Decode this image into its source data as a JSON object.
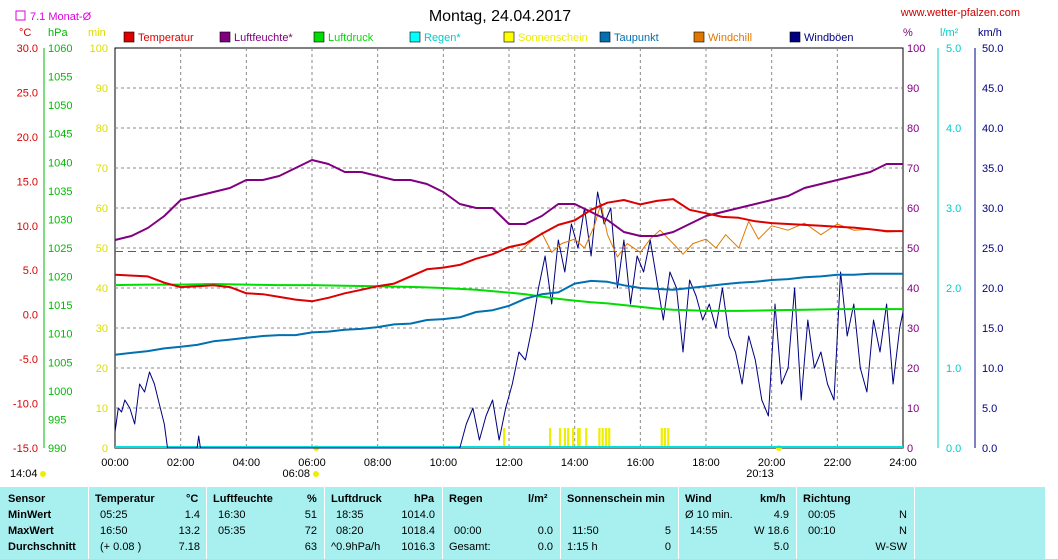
{
  "header": {
    "title": "Montag, 24.04.2017",
    "website": "www.wetter-pfalzen.com",
    "monthly_avg": "7.1 Monat-Ø"
  },
  "unit_labels": {
    "celsius": "°C",
    "hpa": "hPa",
    "min": "min",
    "percent": "%",
    "lm2": "l/m²",
    "kmh": "km/h"
  },
  "colors": {
    "temperature": "#dd0000",
    "humidity": "#800080",
    "pressure": "#00dd00",
    "rain": "#00e0e0",
    "sunshine": "#eeee00",
    "dewpoint": "#0070b0",
    "windchill": "#e07800",
    "gusts": "#000080",
    "monthly_avg": "#dd00dd",
    "background": "#ffffff",
    "stats_background": "#a8f0f0"
  },
  "legend": [
    {
      "label": "Temperatur",
      "color": "#dd0000",
      "text_color": "#dd0000"
    },
    {
      "label": "Luftfeuchte*",
      "color": "#800080",
      "text_color": "#800080"
    },
    {
      "label": "Luftdruck",
      "color": "#00dd00",
      "text_color": "#00dd00"
    },
    {
      "label": "Regen*",
      "color": "#00ffff",
      "text_color": "#00cccc"
    },
    {
      "label": "Sonnenschein",
      "color": "#ffff00",
      "text_color": "#eeee00"
    },
    {
      "label": "Taupunkt",
      "color": "#0070b0",
      "text_color": "#0070b0"
    },
    {
      "label": "Windchill",
      "color": "#e07800",
      "text_color": "#e07800"
    },
    {
      "label": "Windböen",
      "color": "#000080",
      "text_color": "#000080"
    }
  ],
  "axes": {
    "temp_ticks": [
      "30.0",
      "25.0",
      "20.0",
      "15.0",
      "10.0",
      "5.0",
      "0.0",
      "-5.0",
      "-10.0",
      "-15.0"
    ],
    "pressure_ticks": [
      "1060",
      "1055",
      "1050",
      "1045",
      "1040",
      "1035",
      "1030",
      "1025",
      "1020",
      "1015",
      "1010",
      "1005",
      "1000",
      "995",
      "990"
    ],
    "sun_ticks": [
      "100",
      "90",
      "80",
      "70",
      "60",
      "50",
      "40",
      "30",
      "20",
      "10",
      "0"
    ],
    "humidity_ticks": [
      "100",
      "90",
      "80",
      "70",
      "60",
      "50",
      "40",
      "30",
      "20",
      "10",
      "0"
    ],
    "rain_ticks": [
      "5.0",
      "4.0",
      "3.0",
      "2.0",
      "1.0",
      "0.0"
    ],
    "wind_ticks": [
      "50.0",
      "45.0",
      "40.0",
      "35.0",
      "30.0",
      "25.0",
      "20.0",
      "15.0",
      "10.0",
      "5.0",
      "0.0"
    ],
    "x_ticks": [
      "00:00",
      "02:00",
      "04:00",
      "06:00",
      "08:00",
      "10:00",
      "12:00",
      "14:00",
      "16:00",
      "18:00",
      "20:00",
      "22:00",
      "24:00"
    ]
  },
  "sun_events": {
    "sunset_prev": "14:04",
    "sunrise": "06:08",
    "sunset": "20:13"
  },
  "chart_data": {
    "type": "line",
    "x_label": "",
    "xlim": [
      "00:00",
      "24:00"
    ],
    "axes_ranges": {
      "temperature": [
        -15,
        30
      ],
      "pressure": [
        990,
        1060
      ],
      "sunshine": [
        0,
        100
      ],
      "humidity": [
        0,
        100
      ],
      "rain": [
        0,
        5
      ],
      "wind": [
        0,
        50
      ]
    },
    "grid": true,
    "legend_position": "top",
    "monthly_avg": {
      "value": 7.1,
      "axis": "temperature"
    },
    "series": [
      {
        "name": "Temperatur",
        "axis": "temperature",
        "x": [
          0,
          1,
          1.5,
          2,
          2.5,
          3,
          3.5,
          4,
          4.5,
          5,
          5.5,
          6,
          6.5,
          7,
          7.5,
          8,
          8.5,
          9,
          9.5,
          10,
          10.5,
          11,
          11.5,
          12,
          12.5,
          13,
          13.5,
          14,
          14.5,
          15,
          15.5,
          16,
          16.5,
          17,
          17.5,
          18,
          18.5,
          19,
          19.5,
          20,
          20.5,
          21,
          21.5,
          22,
          22.5,
          23,
          23.5,
          24
        ],
        "y": [
          4.5,
          4.3,
          3.6,
          3.1,
          3.2,
          3.3,
          3.1,
          2.4,
          2.3,
          2.0,
          1.7,
          1.5,
          1.9,
          2.4,
          2.8,
          3.2,
          3.5,
          4.3,
          5.1,
          5.3,
          5.6,
          6.3,
          6.8,
          7.6,
          8.0,
          9.1,
          10.1,
          10.6,
          11.8,
          12.6,
          12.9,
          12.4,
          12.8,
          13.0,
          11.8,
          11.4,
          11.0,
          10.9,
          10.5,
          10.3,
          10.2,
          10.1,
          10.0,
          9.9,
          9.8,
          9.6,
          9.4,
          9.4
        ]
      },
      {
        "name": "Luftfeuchte*",
        "axis": "humidity",
        "x": [
          0,
          0.5,
          1,
          1.5,
          2,
          2.5,
          3,
          3.5,
          4,
          4.5,
          5,
          5.5,
          6,
          6.5,
          7,
          7.5,
          8,
          8.5,
          9,
          9.5,
          10,
          10.5,
          11,
          11.5,
          12,
          12.5,
          13,
          13.5,
          14,
          14.5,
          15,
          15.5,
          16,
          16.5,
          17,
          17.5,
          18,
          18.5,
          19,
          19.5,
          20,
          20.5,
          21,
          21.5,
          22,
          22.5,
          23,
          23.5,
          24
        ],
        "y": [
          52,
          53,
          55,
          58,
          62,
          63,
          64,
          65,
          67,
          67,
          68,
          70,
          72,
          71,
          69,
          69,
          68,
          67,
          67,
          66,
          64,
          61,
          60,
          60,
          56,
          56,
          58,
          61,
          61,
          59,
          57,
          54,
          53,
          53,
          54,
          56,
          58,
          59,
          60,
          61,
          62,
          63,
          65,
          66,
          67,
          68,
          69,
          71,
          71
        ]
      },
      {
        "name": "Luftdruck",
        "axis": "pressure",
        "x": [
          0,
          1,
          2,
          3,
          4,
          5,
          6,
          7,
          8,
          9,
          10,
          11,
          12,
          12.5,
          13,
          13.5,
          14,
          14.5,
          15,
          15.5,
          16,
          16.5,
          17,
          17.5,
          18,
          19,
          20,
          21,
          22,
          23,
          24
        ],
        "y": [
          1018.5,
          1018.6,
          1018.6,
          1018.7,
          1018.6,
          1018.5,
          1018.5,
          1018.4,
          1018.3,
          1018.2,
          1018.0,
          1017.7,
          1017.2,
          1016.9,
          1016.5,
          1016.1,
          1015.8,
          1015.5,
          1015.3,
          1015.0,
          1014.7,
          1014.4,
          1014.2,
          1014.1,
          1014.0,
          1014.0,
          1014.1,
          1014.2,
          1014.3,
          1014.3,
          1014.3
        ]
      },
      {
        "name": "Taupunkt",
        "axis": "temperature",
        "x": [
          0,
          0.5,
          1,
          1.5,
          2,
          2.5,
          3,
          3.5,
          4,
          4.5,
          5,
          5.5,
          6,
          6.5,
          7,
          7.5,
          8,
          8.5,
          9,
          9.5,
          10,
          10.5,
          11,
          11.5,
          12,
          12.5,
          13,
          13.5,
          14,
          14.5,
          15,
          15.5,
          16,
          16.5,
          17,
          17.5,
          18,
          18.5,
          19,
          19.5,
          20,
          20.5,
          21,
          21.5,
          22,
          22.5,
          23,
          23.5,
          24
        ],
        "y": [
          -4.5,
          -4.3,
          -4.1,
          -3.8,
          -3.6,
          -3.4,
          -3.0,
          -2.8,
          -2.6,
          -2.4,
          -2.3,
          -2.3,
          -2.0,
          -1.9,
          -1.7,
          -1.6,
          -1.4,
          -1.1,
          -1.0,
          -0.6,
          -0.5,
          -0.3,
          0.3,
          0.5,
          1.0,
          1.8,
          2.3,
          2.5,
          3.5,
          3.8,
          3.7,
          3.3,
          3.0,
          2.9,
          2.8,
          3.0,
          3.2,
          3.4,
          3.6,
          3.7,
          3.9,
          4.0,
          4.2,
          4.3,
          4.5,
          4.5,
          4.6,
          4.6,
          4.6
        ]
      },
      {
        "name": "Windchill",
        "axis": "temperature",
        "x": [
          12.3,
          12.6,
          13,
          13.3,
          13.6,
          14,
          14.3,
          14.6,
          14.8,
          15,
          15.3,
          15.6,
          16,
          16.3,
          16.6,
          17,
          17.3,
          17.6,
          18,
          18.3,
          18.6,
          19,
          19.3,
          19.6,
          20,
          20.5,
          21,
          21.5,
          22,
          22.5,
          23,
          23.5,
          24
        ],
        "y": [
          7.0,
          8.0,
          9.2,
          7.0,
          8.0,
          8.5,
          7.5,
          10.0,
          12.5,
          9.0,
          6.5,
          8.0,
          7.0,
          8.5,
          9.5,
          8.0,
          6.8,
          8.0,
          8.5,
          7.5,
          9.0,
          7.5,
          10.5,
          8.5,
          10.0,
          9.5,
          10.3,
          9.0,
          10.2,
          9.5,
          9.6,
          9.3,
          9.4
        ]
      },
      {
        "name": "Windböen",
        "axis": "wind",
        "x": [
          0,
          0.1,
          0.2,
          0.3,
          0.45,
          0.6,
          0.75,
          0.9,
          1.05,
          1.2,
          1.35,
          1.5,
          1.6,
          1.65,
          2.5,
          2.55,
          2.6,
          10.5,
          10.7,
          10.9,
          11.1,
          11.3,
          11.5,
          11.7,
          11.9,
          12.1,
          12.3,
          12.5,
          12.7,
          12.9,
          13.1,
          13.3,
          13.5,
          13.7,
          13.9,
          14.1,
          14.3,
          14.5,
          14.7,
          14.9,
          15.1,
          15.3,
          15.5,
          15.7,
          15.9,
          16.1,
          16.3,
          16.5,
          16.7,
          16.9,
          17.1,
          17.3,
          17.5,
          17.7,
          17.9,
          18.1,
          18.3,
          18.5,
          18.7,
          18.9,
          19.1,
          19.3,
          19.5,
          19.7,
          19.9,
          20.1,
          20.3,
          20.5,
          20.7,
          20.9,
          21.1,
          21.3,
          21.5,
          21.7,
          21.9,
          22.1,
          22.3,
          22.5,
          22.7,
          22.9,
          23.1,
          23.3,
          23.5,
          23.7,
          23.9,
          24
        ],
        "y": [
          2,
          5,
          4.5,
          6,
          5,
          3,
          8,
          7,
          9.5,
          8,
          5.5,
          3,
          0,
          0,
          0,
          1.5,
          0,
          0,
          3,
          5,
          1,
          4,
          6,
          1,
          5,
          8,
          12,
          11,
          15,
          20,
          24,
          18,
          26,
          22,
          28,
          25,
          30,
          24,
          32,
          28,
          30,
          20,
          26,
          18,
          24,
          22,
          26,
          21,
          16,
          22,
          20,
          12,
          21,
          19,
          16,
          18,
          15,
          20,
          14,
          12,
          8,
          14,
          11,
          6,
          4,
          18,
          8,
          10,
          20,
          6,
          16,
          10,
          12,
          8,
          6,
          22,
          14,
          18,
          10,
          7,
          16,
          12,
          18,
          8,
          15,
          17
        ]
      }
    ]
  },
  "stats": {
    "headers": {
      "sensor": "Sensor",
      "temperature": "Temperatur",
      "temp_unit": "°C",
      "humidity": "Luftfeuchte",
      "humidity_unit": "%",
      "pressure": "Luftdruck",
      "pressure_unit": "hPa",
      "rain": "Regen",
      "rain_unit": "l/m²",
      "sunshine": "Sonnenschein min",
      "wind": "Wind",
      "wind_unit": "km/h",
      "direction": "Richtung"
    },
    "rows": [
      {
        "label": "MinWert",
        "temp_time": "05:25",
        "temp_val": "1.4",
        "hum_time": "16:30",
        "hum_val": "51",
        "pres_time": "18:35",
        "pres_val": "1014.0",
        "rain_time": "",
        "rain_val": "",
        "sun_time": "",
        "sun_val": "",
        "wind_time": "Ø 10 min.",
        "wind_val": "4.9",
        "dir_time": "00:05",
        "dir_val": "N"
      },
      {
        "label": "MaxWert",
        "temp_time": "16:50",
        "temp_val": "13.2",
        "hum_time": "05:35",
        "hum_val": "72",
        "pres_time": "08:20",
        "pres_val": "1018.4",
        "rain_time": "00:00",
        "rain_val": "0.0",
        "sun_time": "11:50",
        "sun_val": "5",
        "wind_time": "14:55",
        "wind_val": "W 18.6",
        "dir_time": "00:10",
        "dir_val": "N"
      },
      {
        "label": "Durchschnitt",
        "temp_time": "(+ 0.08 )",
        "temp_val": "7.18",
        "hum_time": "",
        "hum_val": "63",
        "pres_time": "^0.9hPa/h",
        "pres_val": "1016.3",
        "rain_time": "Gesamt:",
        "rain_val": "0.0",
        "sun_time": "1:15 h",
        "sun_val": "0",
        "wind_time": "",
        "wind_val": "5.0",
        "dir_time": "",
        "dir_val": "W-SW"
      }
    ]
  }
}
